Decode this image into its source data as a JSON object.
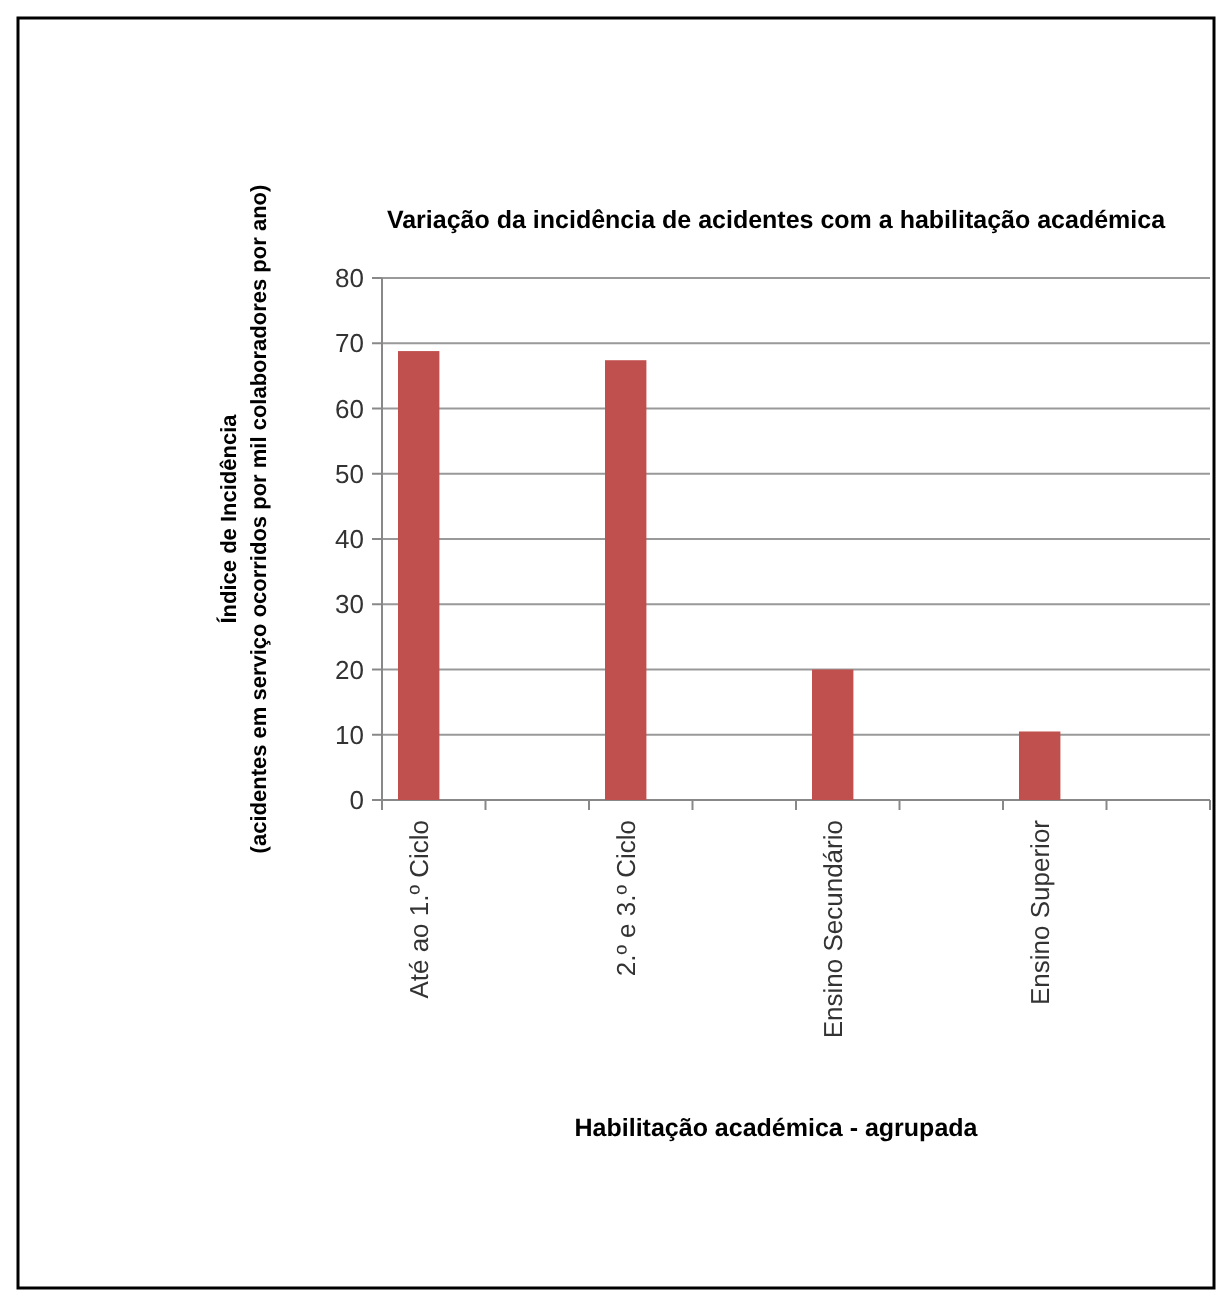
{
  "chart_data": {
    "type": "bar",
    "title": "Variação da incidência de acidentes com a habilitação académica",
    "xlabel": "Habilitação académica - agrupada",
    "ylabel": "Índice de Incidência\n(acidentes em serviço ocorridos por mil colaboradores por ano)",
    "categories": [
      "Até ao 1.º Ciclo",
      null,
      "2.º e 3.º Ciclo",
      null,
      "Ensino Secundário",
      null,
      "Ensino Superior",
      null
    ],
    "values": [
      68.8,
      null,
      67.4,
      null,
      20,
      null,
      10.5,
      null
    ],
    "color": "#c0504d",
    "ylim": [
      0,
      80
    ],
    "yticks": [
      0,
      10,
      20,
      30,
      40,
      50,
      60,
      70,
      80
    ],
    "grid": "y"
  }
}
